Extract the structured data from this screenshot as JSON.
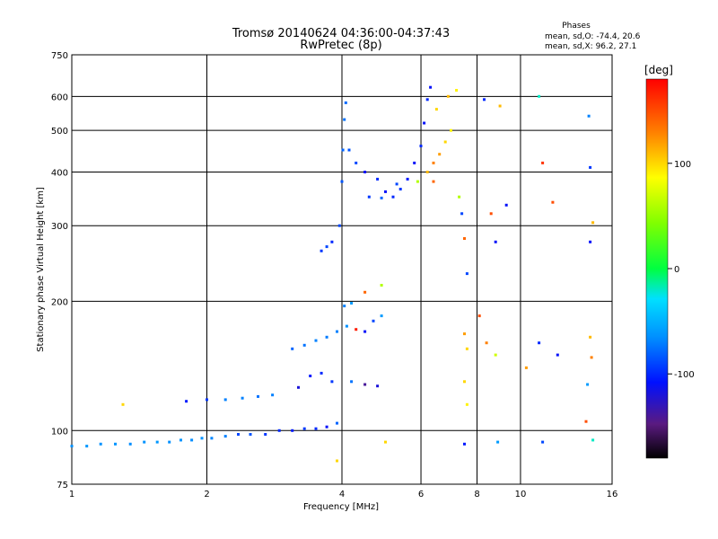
{
  "title": "Tromsø 20140624 04:36:00-04:37:43",
  "subtitle": "RwPretec (8p)",
  "phases": {
    "heading": "Phases",
    "line_o": "mean, sd,O: -74.4, 20.6",
    "line_x": "mean, sd,X:  96.2, 27.1"
  },
  "colorbar": {
    "label": "[deg]",
    "range": [
      -180,
      180
    ],
    "ticks": [
      100,
      0,
      -100
    ],
    "tick_labels": [
      "100",
      "0",
      "-100"
    ]
  },
  "chart_data": {
    "type": "scatter",
    "title": "Tromsø 20140624 04:36:00-04:37:43",
    "subtitle": "RwPretec (8p)",
    "xlabel": "Frequency [MHz]",
    "ylabel": "Stationary phase Virtual Height [km]",
    "x_scale": "log",
    "y_scale": "log",
    "xlim": [
      1,
      16
    ],
    "ylim": [
      75,
      750
    ],
    "x_ticks": [
      1,
      2,
      4,
      6,
      8,
      10,
      16
    ],
    "x_tick_labels": [
      "1",
      "2",
      "4",
      "6",
      "8",
      "10",
      "16"
    ],
    "y_ticks": [
      75,
      100,
      200,
      300,
      400,
      500,
      600,
      750
    ],
    "y_tick_labels": [
      "75",
      "100",
      "200",
      "300",
      "400",
      "500",
      "600",
      "750"
    ],
    "grid": true,
    "series": [
      {
        "color_by": "phase_deg",
        "points": [
          [
            1.0,
            92,
            -65
          ],
          [
            1.08,
            92,
            -62
          ],
          [
            1.16,
            93,
            -64
          ],
          [
            1.25,
            93,
            -63
          ],
          [
            1.35,
            93,
            -66
          ],
          [
            1.45,
            94,
            -64
          ],
          [
            1.55,
            94,
            -62
          ],
          [
            1.65,
            94,
            -65
          ],
          [
            1.75,
            95,
            -63
          ],
          [
            1.85,
            95,
            -66
          ],
          [
            1.95,
            96,
            -64
          ],
          [
            2.05,
            96,
            -68
          ],
          [
            2.2,
            97,
            -70
          ],
          [
            2.35,
            98,
            -90
          ],
          [
            2.5,
            98,
            -85
          ],
          [
            2.7,
            98,
            -95
          ],
          [
            2.9,
            100,
            -100
          ],
          [
            3.1,
            100,
            -105
          ],
          [
            3.3,
            101,
            -95
          ],
          [
            3.5,
            101,
            -100
          ],
          [
            3.7,
            102,
            -110
          ],
          [
            3.9,
            104,
            -80
          ],
          [
            1.3,
            115,
            100
          ],
          [
            1.8,
            117,
            -105
          ],
          [
            2.0,
            118,
            -95
          ],
          [
            2.2,
            118,
            -70
          ],
          [
            2.4,
            119,
            -70
          ],
          [
            2.6,
            120,
            -75
          ],
          [
            2.8,
            121,
            -70
          ],
          [
            3.2,
            126,
            -120
          ],
          [
            3.4,
            134,
            -105
          ],
          [
            3.6,
            136,
            -100
          ],
          [
            3.8,
            130,
            -95
          ],
          [
            4.2,
            130,
            -75
          ],
          [
            4.5,
            128,
            -140
          ],
          [
            4.8,
            127,
            -120
          ],
          [
            3.1,
            155,
            -80
          ],
          [
            3.3,
            158,
            -75
          ],
          [
            3.5,
            162,
            -70
          ],
          [
            3.7,
            165,
            -72
          ],
          [
            3.9,
            170,
            -70
          ],
          [
            4.1,
            175,
            -65
          ],
          [
            4.3,
            172,
            170
          ],
          [
            4.5,
            170,
            -110
          ],
          [
            4.7,
            180,
            -90
          ],
          [
            4.9,
            185,
            -60
          ],
          [
            4.05,
            195,
            -70
          ],
          [
            4.2,
            198,
            -60
          ],
          [
            4.5,
            210,
            140
          ],
          [
            4.9,
            218,
            60
          ],
          [
            3.6,
            262,
            -95
          ],
          [
            3.7,
            268,
            -90
          ],
          [
            3.8,
            275,
            -100
          ],
          [
            3.95,
            300,
            -90
          ],
          [
            4.0,
            380,
            -85
          ],
          [
            4.02,
            450,
            -80
          ],
          [
            4.05,
            530,
            -75
          ],
          [
            4.08,
            580,
            -78
          ],
          [
            4.15,
            450,
            -85
          ],
          [
            4.3,
            420,
            -90
          ],
          [
            4.5,
            400,
            -110
          ],
          [
            4.8,
            385,
            -100
          ],
          [
            5.0,
            360,
            -110
          ],
          [
            5.2,
            350,
            -100
          ],
          [
            5.4,
            365,
            -95
          ],
          [
            5.6,
            385,
            -105
          ],
          [
            5.8,
            420,
            -110
          ],
          [
            6.0,
            460,
            -100
          ],
          [
            6.1,
            520,
            -110
          ],
          [
            6.2,
            590,
            -100
          ],
          [
            6.3,
            630,
            -110
          ],
          [
            4.6,
            350,
            -95
          ],
          [
            4.9,
            348,
            -80
          ],
          [
            5.3,
            375,
            -90
          ],
          [
            5.9,
            380,
            60
          ],
          [
            6.2,
            400,
            110
          ],
          [
            6.4,
            420,
            130
          ],
          [
            6.6,
            440,
            120
          ],
          [
            6.8,
            470,
            100
          ],
          [
            7.0,
            500,
            90
          ],
          [
            6.5,
            560,
            100
          ],
          [
            6.9,
            600,
            110
          ],
          [
            7.2,
            620,
            90
          ],
          [
            6.4,
            380,
            140
          ],
          [
            7.3,
            350,
            60
          ],
          [
            7.4,
            320,
            -90
          ],
          [
            7.5,
            280,
            140
          ],
          [
            7.6,
            232,
            -90
          ],
          [
            8.3,
            590,
            -100
          ],
          [
            8.6,
            320,
            150
          ],
          [
            8.8,
            275,
            -110
          ],
          [
            9.0,
            570,
            110
          ],
          [
            9.3,
            335,
            -110
          ],
          [
            11.0,
            600,
            -20
          ],
          [
            11.2,
            420,
            160
          ],
          [
            11.8,
            340,
            150
          ],
          [
            14.2,
            540,
            -70
          ],
          [
            14.3,
            410,
            -95
          ],
          [
            14.5,
            305,
            110
          ],
          [
            14.3,
            275,
            -110
          ],
          [
            7.5,
            168,
            120
          ],
          [
            7.6,
            155,
            100
          ],
          [
            8.1,
            185,
            150
          ],
          [
            8.4,
            160,
            130
          ],
          [
            8.8,
            150,
            70
          ],
          [
            10.3,
            140,
            120
          ],
          [
            11.0,
            160,
            -100
          ],
          [
            12.1,
            150,
            -110
          ],
          [
            14.3,
            165,
            110
          ],
          [
            14.4,
            148,
            130
          ],
          [
            14.1,
            128,
            -60
          ],
          [
            14.0,
            105,
            150
          ],
          [
            7.5,
            130,
            100
          ],
          [
            7.6,
            115,
            90
          ],
          [
            7.5,
            93,
            -105
          ],
          [
            8.9,
            94,
            -60
          ],
          [
            11.2,
            94,
            -90
          ],
          [
            14.5,
            95,
            -20
          ],
          [
            5.0,
            94,
            100
          ],
          [
            3.9,
            85,
            100
          ]
        ]
      }
    ]
  }
}
